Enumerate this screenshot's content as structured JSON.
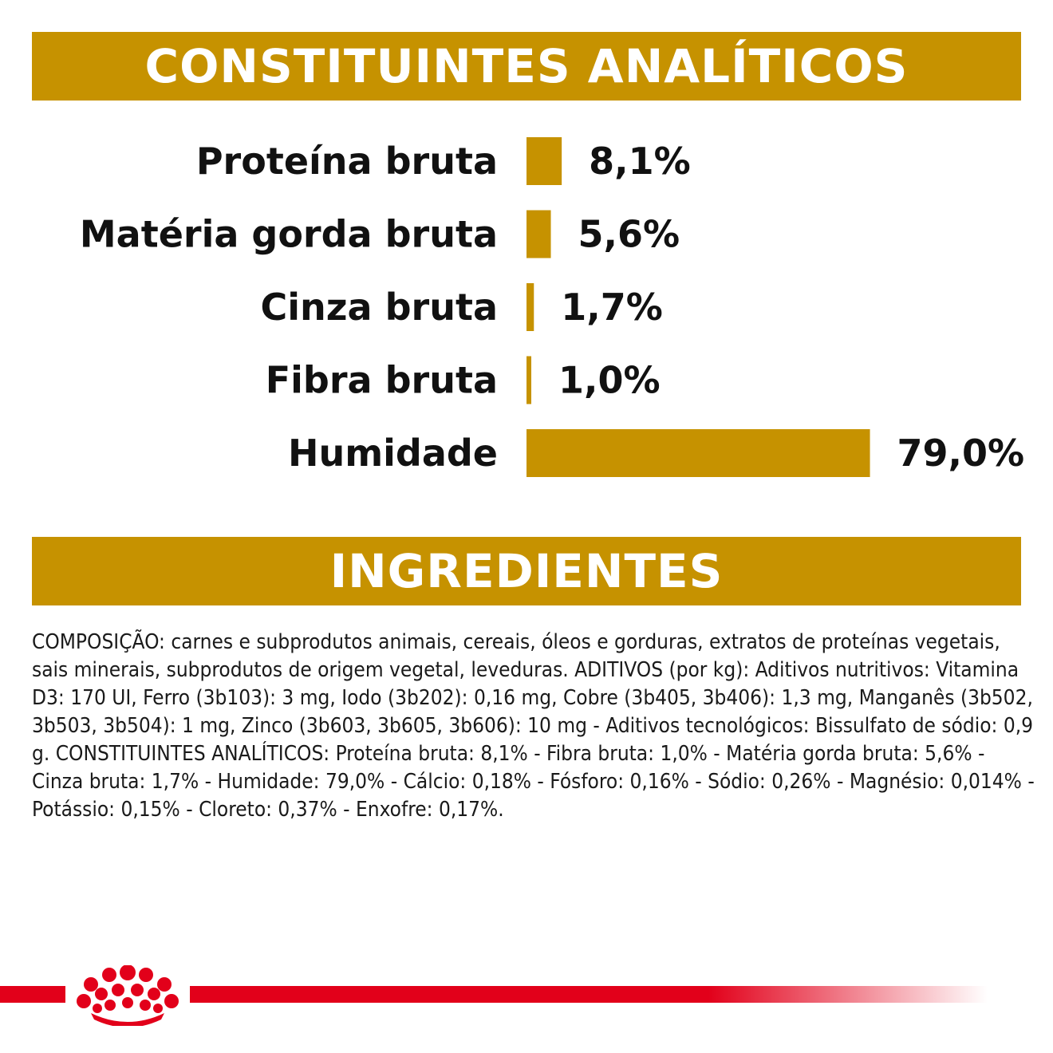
{
  "colors": {
    "accent": "#C69200",
    "brand_red": "#E2001A",
    "text": "#1a1a1a"
  },
  "banners": {
    "analytic": "CONSTITUINTES ANALÍTICOS",
    "ingredients": "INGREDIENTES"
  },
  "chart_data": {
    "type": "bar",
    "orientation": "horizontal",
    "categories": [
      "Proteína bruta",
      "Matéria gorda bruta",
      "Cinza bruta",
      "Fibra bruta",
      "Humidade"
    ],
    "values": [
      8.1,
      5.6,
      1.7,
      1.0,
      79.0
    ],
    "value_labels": [
      "8,1%",
      "5,6%",
      "1,7%",
      "1,0%",
      "79,0%"
    ],
    "unit": "%",
    "grid": false,
    "legend": "none"
  },
  "ingredients": {
    "text": "COMPOSIÇÃO: carnes e subprodutos animais, cereais, óleos e gorduras, extratos de proteínas vegetais, sais minerais, subprodutos de origem vegetal, leveduras. ADITIVOS (por kg): Aditivos nutritivos: Vitamina D3: 170 UI, Ferro (3b103): 3 mg, Iodo (3b202): 0,16 mg, Cobre (3b405, 3b406): 1,3 mg, Manganês (3b502, 3b503, 3b504): 1 mg, Zinco (3b603, 3b605, 3b606): 10 mg - Aditivos tecnológicos: Bissulfato de sódio: 0,9 g. CONSTITUINTES ANALÍTICOS: Proteína bruta: 8,1% - Fibra bruta: 1,0% - Matéria gorda bruta: 5,6% - Cinza bruta: 1,7% - Humidade: 79,0% - Cálcio: 0,18% - Fósforo: 0,16% - Sódio: 0,26% - Magnésio: 0,014% - Potássio: 0,15% - Cloreto: 0,37% - Enxofre: 0,17%."
  },
  "footer": {
    "logo_icon": "royal-canin-crown-icon"
  }
}
